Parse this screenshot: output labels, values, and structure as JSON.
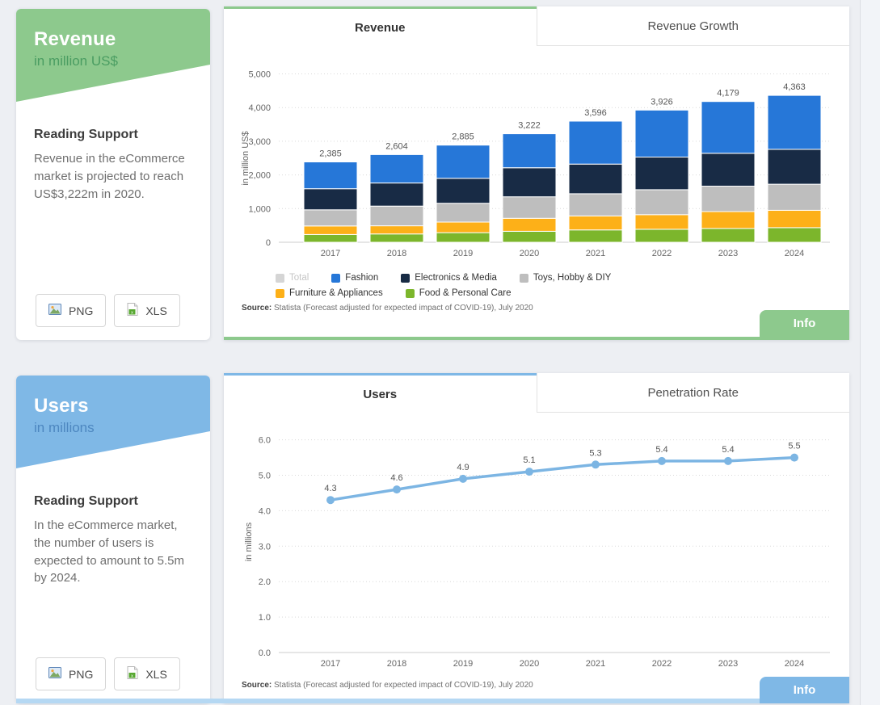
{
  "revenue_summary_card": {
    "title": "Revenue",
    "subtitle": "in million US$",
    "accent_color": "#8dc98d",
    "subtitle_color": "#4a9d62",
    "reading_support_title": "Reading Support",
    "reading_support_text": "Revenue in the eCommerce market is projected to reach US$3,222m in 2020.",
    "png_button_label": "PNG",
    "xls_button_label": "XLS"
  },
  "users_summary_card": {
    "title": "Users",
    "subtitle": "in millions",
    "accent_color": "#7fb8e6",
    "subtitle_color": "#4d87c0",
    "reading_support_title": "Reading Support",
    "reading_support_text": "In the eCommerce market, the number of users is expected to amount to 5.5m by 2024.",
    "png_button_label": "PNG",
    "xls_button_label": "XLS"
  },
  "revenue_chart_card": {
    "tabs": [
      {
        "label": "Revenue",
        "active": true
      },
      {
        "label": "Revenue Growth",
        "active": false
      }
    ],
    "accent_color": "#8dc98d",
    "source_label": "Source:",
    "source_text": "Statista (Forecast adjusted for expected impact of COVID-19), July 2020",
    "info_button_label": "Info"
  },
  "users_chart_card": {
    "tabs": [
      {
        "label": "Users",
        "active": true
      },
      {
        "label": "Penetration Rate",
        "active": false
      }
    ],
    "accent_color": "#7fb8e6",
    "source_label": "Source:",
    "source_text": "Statista (Forecast adjusted for expected impact of COVID-19), July 2020",
    "info_button_label": "Info"
  },
  "chart_data": [
    {
      "type": "bar",
      "stacked": true,
      "title": "Revenue",
      "ylabel": "in million US$",
      "categories": [
        "2017",
        "2018",
        "2019",
        "2020",
        "2021",
        "2022",
        "2023",
        "2024"
      ],
      "totals": [
        2385,
        2604,
        2885,
        3222,
        3596,
        3926,
        4179,
        4363
      ],
      "total_labels": [
        "2,385",
        "2,604",
        "2,885",
        "3,222",
        "3,596",
        "3,926",
        "4,179",
        "4,363"
      ],
      "ylim": [
        0,
        5000
      ],
      "ytick_labels": [
        "0",
        "1,000",
        "2,000",
        "3,000",
        "4,000",
        "5,000"
      ],
      "grid": "dotted-horizontal",
      "legend_position": "bottom",
      "series": [
        {
          "name": "Food & Personal Care",
          "color": "#7cb62c",
          "values": [
            230,
            247,
            285,
            327,
            366,
            386,
            412,
            435
          ]
        },
        {
          "name": "Furniture & Appliances",
          "color": "#fdb018",
          "values": [
            255,
            242,
            315,
            385,
            415,
            435,
            500,
            515
          ]
        },
        {
          "name": "Toys, Hobby & DIY",
          "color": "#bebebe",
          "values": [
            480,
            583,
            560,
            640,
            660,
            740,
            755,
            775
          ]
        },
        {
          "name": "Electronics & Media",
          "color": "#182b45",
          "values": [
            625,
            687,
            740,
            860,
            880,
            970,
            975,
            1035
          ]
        },
        {
          "name": "Fashion",
          "color": "#2677d8",
          "values": [
            795,
            845,
            985,
            1010,
            1275,
            1395,
            1537,
            1603
          ]
        }
      ],
      "legend": [
        {
          "label": "Total",
          "color": "#d5d5d5",
          "disabled": true
        },
        {
          "label": "Fashion",
          "color": "#2677d8",
          "disabled": false
        },
        {
          "label": "Electronics & Media",
          "color": "#182b45",
          "disabled": false
        },
        {
          "label": "Toys, Hobby & DIY",
          "color": "#bebebe",
          "disabled": false
        },
        {
          "label": "Furniture & Appliances",
          "color": "#fdb018",
          "disabled": false
        },
        {
          "label": "Food & Personal Care",
          "color": "#7cb62c",
          "disabled": false
        }
      ]
    },
    {
      "type": "line",
      "title": "Users",
      "ylabel": "in millions",
      "categories": [
        "2017",
        "2018",
        "2019",
        "2020",
        "2021",
        "2022",
        "2023",
        "2024"
      ],
      "values": [
        4.3,
        4.6,
        4.9,
        5.1,
        5.3,
        5.4,
        5.4,
        5.5
      ],
      "value_labels": [
        "4.3",
        "4.6",
        "4.9",
        "5.1",
        "5.3",
        "5.4",
        "5.4",
        "5.5"
      ],
      "color": "#7cb5e3",
      "ylim": [
        0,
        6
      ],
      "ytick_labels": [
        "0.0",
        "1.0",
        "2.0",
        "3.0",
        "4.0",
        "5.0",
        "6.0"
      ],
      "grid": "dotted-horizontal"
    }
  ]
}
